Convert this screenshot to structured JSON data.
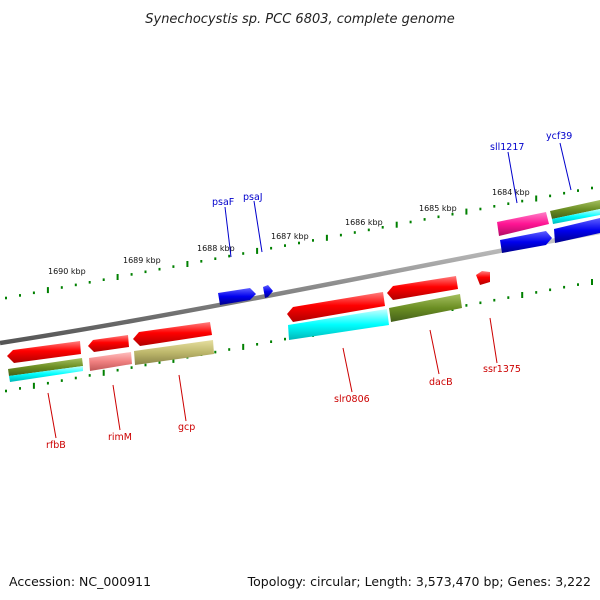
{
  "title": "Synechocystis sp. PCC 6803, complete genome",
  "footer": {
    "accession": "Accession: NC_000911",
    "summary": "Topology: circular; Length: 3,573,470 bp; Genes: 3,222"
  },
  "ticks": [
    "1690 kbp",
    "1689 kbp",
    "1688 kbp",
    "1687 kbp",
    "1686 kbp",
    "1685 kbp",
    "1684 kbp"
  ],
  "genes_top": [
    "psaF",
    "psaJ",
    "sll1217",
    "ycf39"
  ],
  "genes_bottom": [
    "rfbB",
    "rimM",
    "gcp",
    "slr0806",
    "dacB",
    "ssr1375"
  ],
  "colors": {
    "red": "#ff0000",
    "blue": "#0000ee",
    "cyan": "#00ffff",
    "olive": "#6b8e23",
    "khaki": "#bdb76b",
    "salmon": "#f08080",
    "magenta": "#ff1493",
    "tick_green": "#008000",
    "backbone": "#888888"
  }
}
